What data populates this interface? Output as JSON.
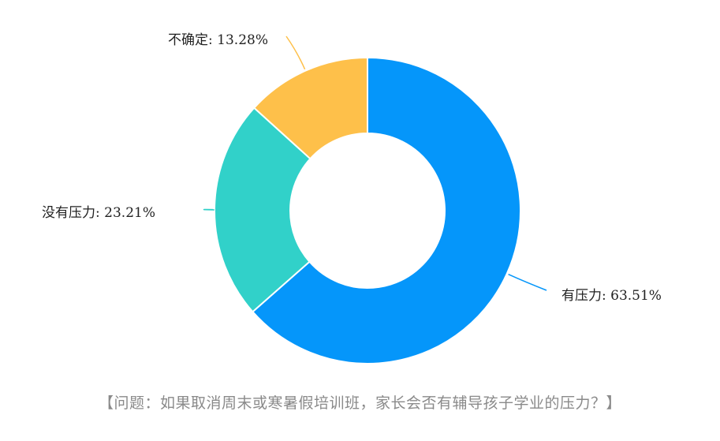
{
  "chart_data": {
    "type": "pie",
    "donut": true,
    "categories": [
      "有压力",
      "没有压力",
      "不确定"
    ],
    "values": [
      63.51,
      23.21,
      13.28
    ],
    "labels": [
      "有压力: 63.51%",
      "没有压力: 23.21%",
      "不确定: 13.28%"
    ],
    "colors": [
      "#0596fa",
      "#31d1c9",
      "#fec04a"
    ],
    "legend": "none",
    "start_angle_deg": 0,
    "direction": "clockwise"
  },
  "caption": "【问题：如果取消周末或寒暑假培训班，家长会否有辅导孩子学业的压力？】"
}
